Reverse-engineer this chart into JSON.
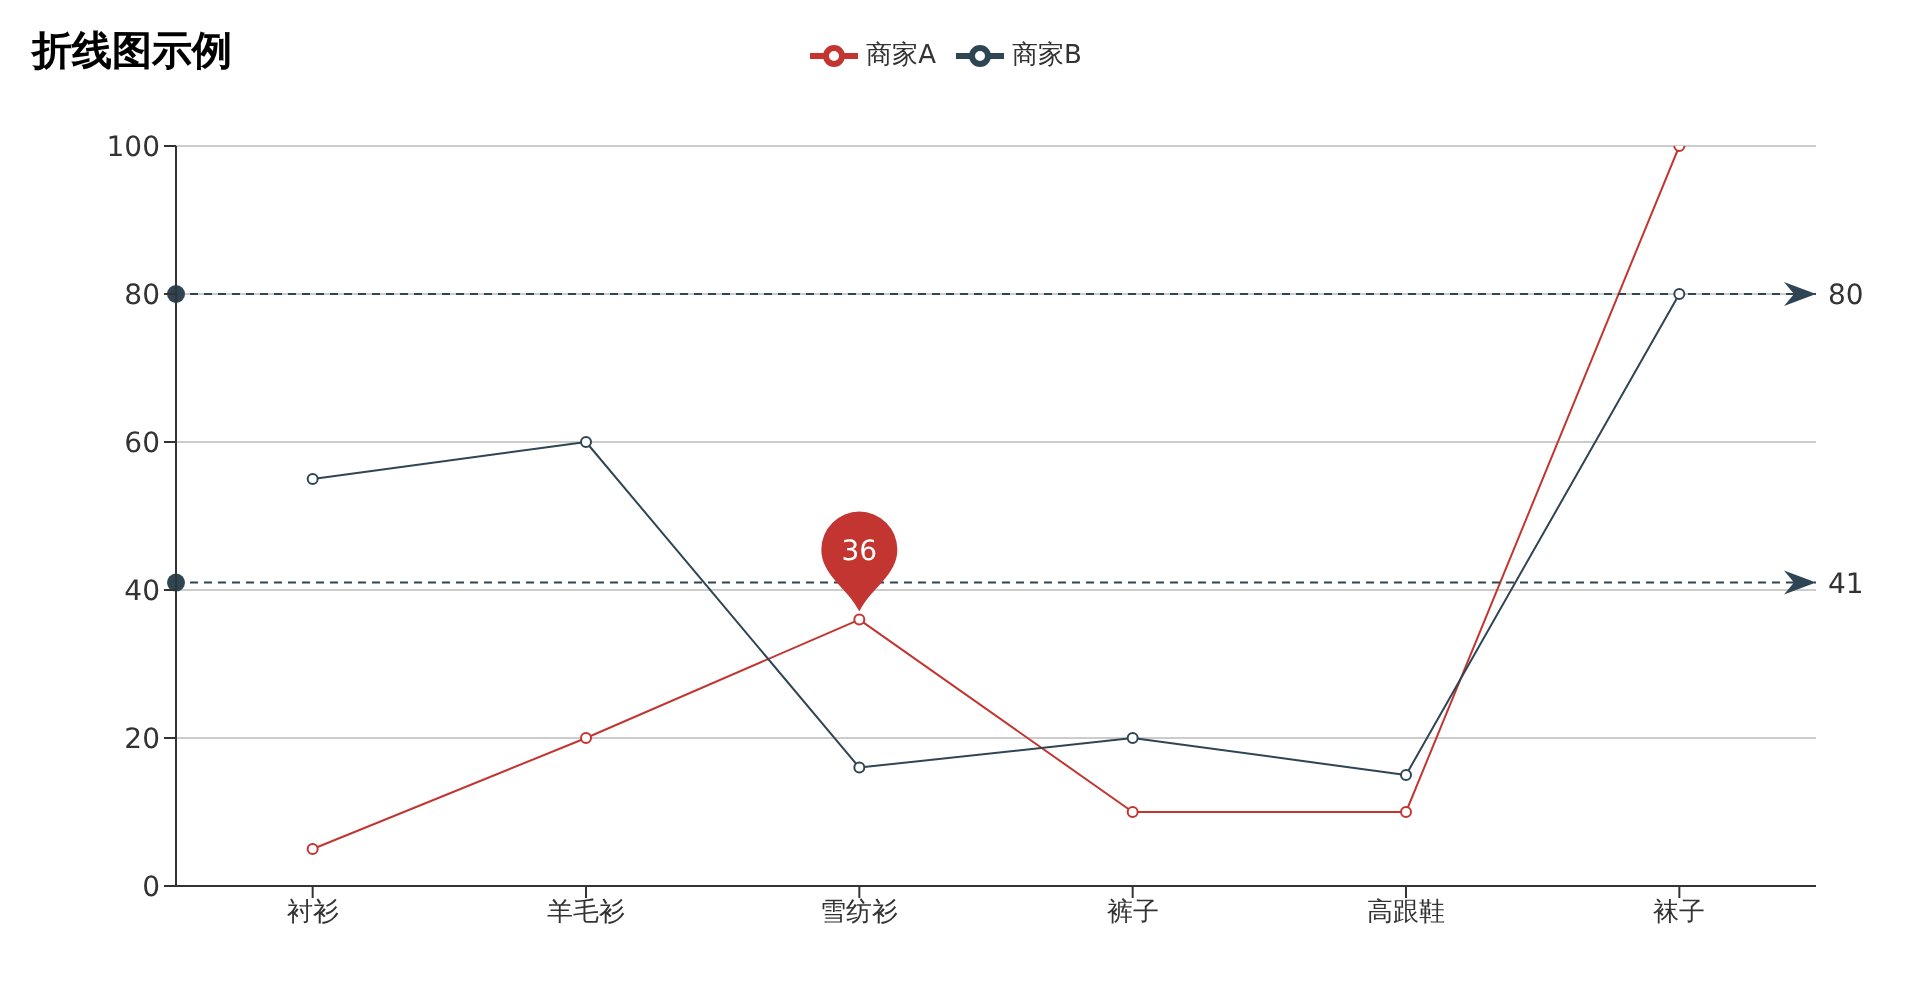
{
  "chart_data": {
    "type": "line",
    "title": "折线图示例",
    "categories": [
      "衬衫",
      "羊毛衫",
      "雪纺衫",
      "裤子",
      "高跟鞋",
      "袜子"
    ],
    "series": [
      {
        "name": "商家A",
        "color": "#c23531",
        "values": [
          5,
          20,
          36,
          10,
          10,
          100
        ]
      },
      {
        "name": "商家B",
        "color": "#2f4554",
        "values": [
          55,
          60,
          16,
          20,
          15,
          80
        ]
      }
    ],
    "ylim": [
      0,
      100
    ],
    "yticks": [
      0,
      20,
      40,
      60,
      80,
      100
    ],
    "grid": "y",
    "legend": "top",
    "marker": "circle",
    "ref_lines": [
      {
        "axis": "y",
        "value": 80,
        "label": "80",
        "color": "#2f4554",
        "line_style": "dashed"
      },
      {
        "axis": "y",
        "value": 41,
        "label": "41",
        "color": "#2f4554",
        "line_style": "dashed"
      }
    ],
    "annotations": [
      {
        "text": "36",
        "x": "雪纺衫",
        "y": 36
      }
    ]
  }
}
